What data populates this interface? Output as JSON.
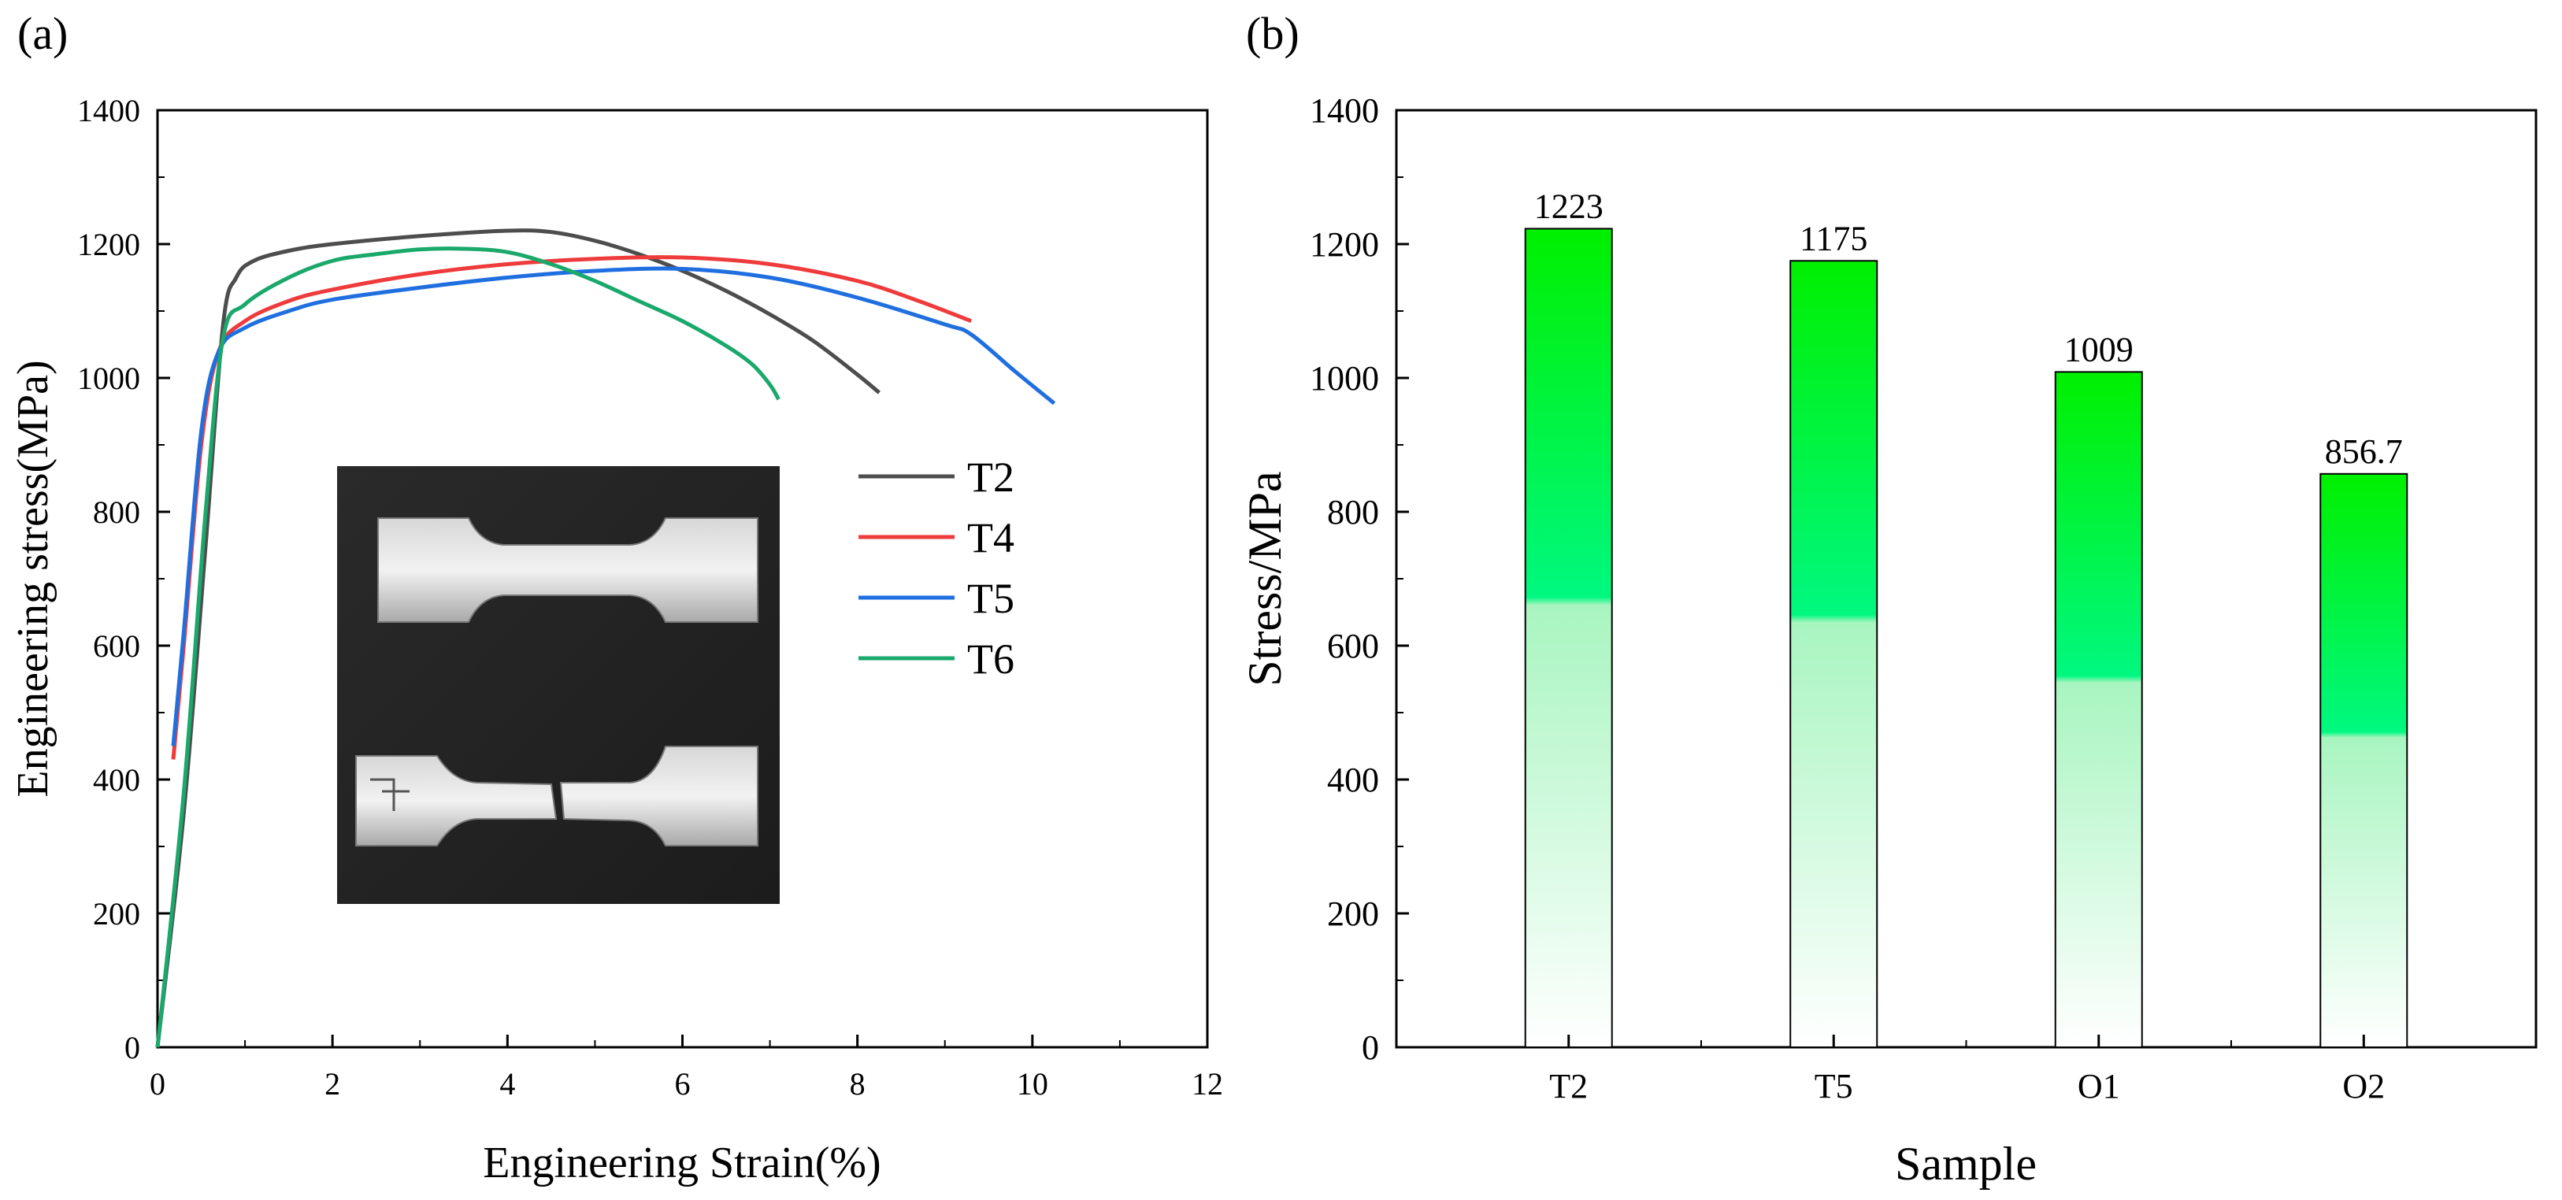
{
  "panels": {
    "a_label": "(a)",
    "b_label": "(b)"
  },
  "inset": {
    "description_icon": "photo-of-tensile-specimens"
  },
  "chart_data": [
    {
      "type": "line",
      "xlabel": "Engineering Strain(%)",
      "ylabel": "Engineering stress(MPa)",
      "xlim": [
        0,
        12
      ],
      "ylim": [
        0,
        1400
      ],
      "xticks": [
        "0",
        "2",
        "4",
        "6",
        "8",
        "10",
        "12"
      ],
      "yticks": [
        "0",
        "200",
        "400",
        "600",
        "800",
        "1000",
        "1200",
        "1400"
      ],
      "grid": false,
      "legend_position": "right-middle",
      "series": [
        {
          "name": "T2",
          "color": "#4d4d4d",
          "points": [
            [
              0,
              0
            ],
            [
              0.3,
              350
            ],
            [
              0.55,
              750
            ],
            [
              0.75,
              1080
            ],
            [
              0.9,
              1150
            ],
            [
              1.1,
              1175
            ],
            [
              1.5,
              1190
            ],
            [
              2,
              1200
            ],
            [
              3,
              1212
            ],
            [
              4,
              1220
            ],
            [
              4.5,
              1218
            ],
            [
              5,
              1205
            ],
            [
              5.5,
              1185
            ],
            [
              6,
              1160
            ],
            [
              6.5,
              1130
            ],
            [
              7,
              1095
            ],
            [
              7.5,
              1055
            ],
            [
              8,
              1005
            ],
            [
              8.25,
              978
            ]
          ]
        },
        {
          "name": "T4",
          "color": "#ef3b3b",
          "points": [
            [
              0.18,
              430
            ],
            [
              0.3,
              600
            ],
            [
              0.5,
              900
            ],
            [
              0.7,
              1040
            ],
            [
              1,
              1085
            ],
            [
              1.5,
              1115
            ],
            [
              2,
              1132
            ],
            [
              3,
              1155
            ],
            [
              4,
              1170
            ],
            [
              5,
              1178
            ],
            [
              6,
              1180
            ],
            [
              7,
              1170
            ],
            [
              8,
              1145
            ],
            [
              8.7,
              1115
            ],
            [
              9.3,
              1085
            ]
          ]
        },
        {
          "name": "T5",
          "color": "#1f6fe0",
          "points": [
            [
              0.18,
              450
            ],
            [
              0.3,
              620
            ],
            [
              0.5,
              920
            ],
            [
              0.7,
              1040
            ],
            [
              1,
              1075
            ],
            [
              1.5,
              1100
            ],
            [
              2,
              1117
            ],
            [
              3,
              1135
            ],
            [
              4,
              1150
            ],
            [
              5,
              1160
            ],
            [
              6,
              1163
            ],
            [
              7,
              1150
            ],
            [
              8,
              1120
            ],
            [
              9,
              1080
            ],
            [
              9.3,
              1065
            ],
            [
              9.8,
              1010
            ],
            [
              10.25,
              962
            ]
          ]
        },
        {
          "name": "T6",
          "color": "#1aa86b",
          "points": [
            [
              0,
              0
            ],
            [
              0.3,
              380
            ],
            [
              0.55,
              800
            ],
            [
              0.75,
              1060
            ],
            [
              1,
              1110
            ],
            [
              1.5,
              1150
            ],
            [
              2,
              1175
            ],
            [
              2.5,
              1185
            ],
            [
              3,
              1192
            ],
            [
              3.5,
              1193
            ],
            [
              4,
              1188
            ],
            [
              4.5,
              1170
            ],
            [
              5,
              1145
            ],
            [
              5.5,
              1115
            ],
            [
              6,
              1085
            ],
            [
              6.5,
              1048
            ],
            [
              6.8,
              1020
            ],
            [
              7,
              990
            ],
            [
              7.1,
              968
            ]
          ]
        }
      ]
    },
    {
      "type": "bar",
      "xlabel": "Sample",
      "ylabel": "Stress/MPa",
      "categories": [
        "T2",
        "T5",
        "O1",
        "O2"
      ],
      "values": [
        1223,
        1175,
        1009,
        856.7
      ],
      "value_labels": [
        "1223",
        "1175",
        "1009",
        "856.7"
      ],
      "ylim": [
        0,
        1400
      ],
      "yticks": [
        "0",
        "200",
        "400",
        "600",
        "800",
        "1000",
        "1200",
        "1400"
      ],
      "grid": false,
      "bar_color_top": "#00ee00",
      "bar_color_bottom": "#ffffff"
    }
  ]
}
